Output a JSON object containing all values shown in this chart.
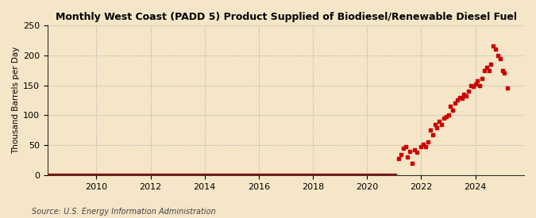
{
  "title": "Monthly West Coast (PADD 5) Product Supplied of Biodiesel/Renewable Diesel Fuel",
  "ylabel": "Thousand Barrels per Day",
  "source": "Source: U.S. Energy Information Administration",
  "background_color": "#f5e6c8",
  "plot_bg_color": "#f5e6c8",
  "marker_color": "#cc0000",
  "line_color": "#8b0000",
  "ylim": [
    0,
    250
  ],
  "yticks": [
    0,
    50,
    100,
    150,
    200,
    250
  ],
  "xticks": [
    2010,
    2012,
    2014,
    2016,
    2018,
    2020,
    2022,
    2024
  ],
  "xlim_start": 2008.2,
  "xlim_end": 2025.8,
  "zero_line": {
    "x_start": 2008.2,
    "x_end": 2021.1,
    "y": 0
  },
  "scatter_data": [
    [
      2021.17,
      28
    ],
    [
      2021.25,
      35
    ],
    [
      2021.33,
      45
    ],
    [
      2021.42,
      48
    ],
    [
      2021.5,
      30
    ],
    [
      2021.58,
      40
    ],
    [
      2021.67,
      20
    ],
    [
      2021.75,
      42
    ],
    [
      2021.83,
      38
    ],
    [
      2022.0,
      48
    ],
    [
      2022.08,
      52
    ],
    [
      2022.17,
      47
    ],
    [
      2022.25,
      55
    ],
    [
      2022.33,
      75
    ],
    [
      2022.42,
      68
    ],
    [
      2022.5,
      85
    ],
    [
      2022.58,
      80
    ],
    [
      2022.67,
      90
    ],
    [
      2022.75,
      84
    ],
    [
      2022.83,
      95
    ],
    [
      2022.92,
      98
    ],
    [
      2023.0,
      100
    ],
    [
      2023.08,
      115
    ],
    [
      2023.17,
      108
    ],
    [
      2023.25,
      120
    ],
    [
      2023.33,
      125
    ],
    [
      2023.42,
      130
    ],
    [
      2023.5,
      128
    ],
    [
      2023.58,
      135
    ],
    [
      2023.67,
      132
    ],
    [
      2023.75,
      140
    ],
    [
      2023.83,
      150
    ],
    [
      2023.92,
      148
    ],
    [
      2024.0,
      152
    ],
    [
      2024.08,
      158
    ],
    [
      2024.17,
      150
    ],
    [
      2024.25,
      162
    ],
    [
      2024.33,
      175
    ],
    [
      2024.42,
      180
    ],
    [
      2024.5,
      175
    ],
    [
      2024.58,
      185
    ],
    [
      2024.67,
      215
    ],
    [
      2024.75,
      210
    ],
    [
      2024.83,
      200
    ],
    [
      2024.92,
      195
    ],
    [
      2025.0,
      175
    ],
    [
      2025.08,
      170
    ],
    [
      2025.17,
      145
    ]
  ]
}
